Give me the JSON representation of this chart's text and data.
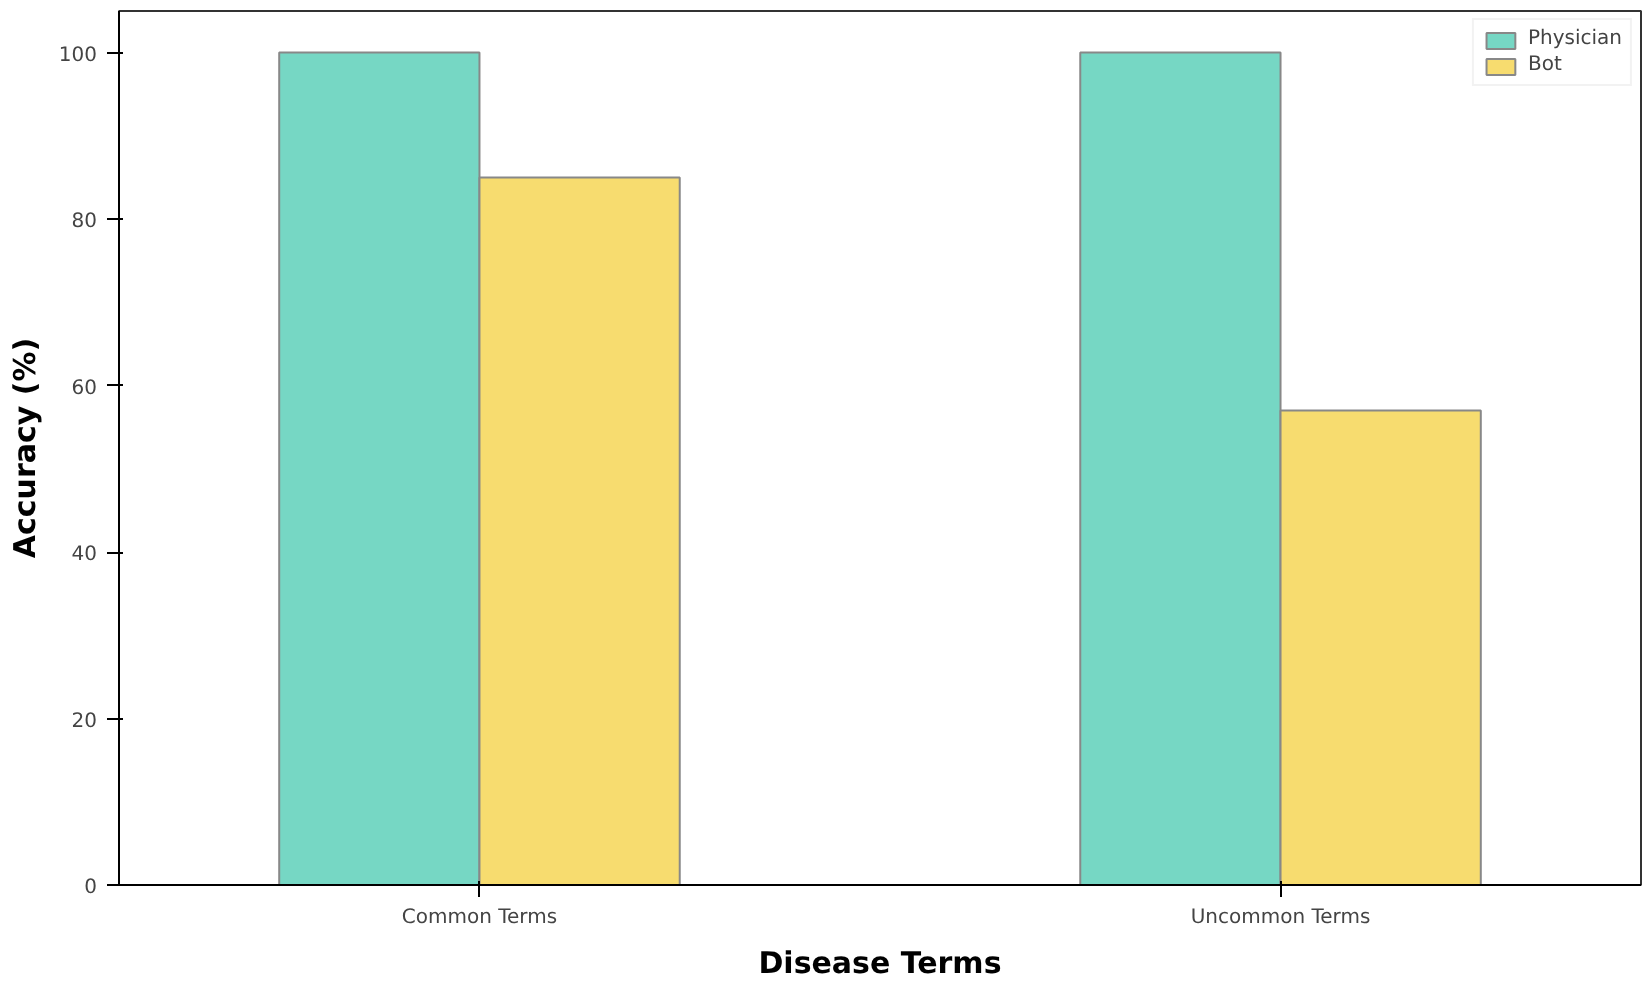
{
  "chart_data": {
    "type": "bar",
    "xlabel": "Disease Terms",
    "ylabel": "Accuracy (%)",
    "categories": [
      "Common Terms",
      "Uncommon Terms"
    ],
    "series": [
      {
        "name": "Physician",
        "color": "#76d7c4",
        "values": [
          100,
          100
        ]
      },
      {
        "name": "Bot",
        "color": "#f7dc6f",
        "values": [
          85,
          57
        ]
      }
    ],
    "ylim": [
      0,
      105
    ],
    "yticks": [
      0,
      20,
      40,
      60,
      80,
      100
    ],
    "grid": false,
    "legend": "top right"
  }
}
